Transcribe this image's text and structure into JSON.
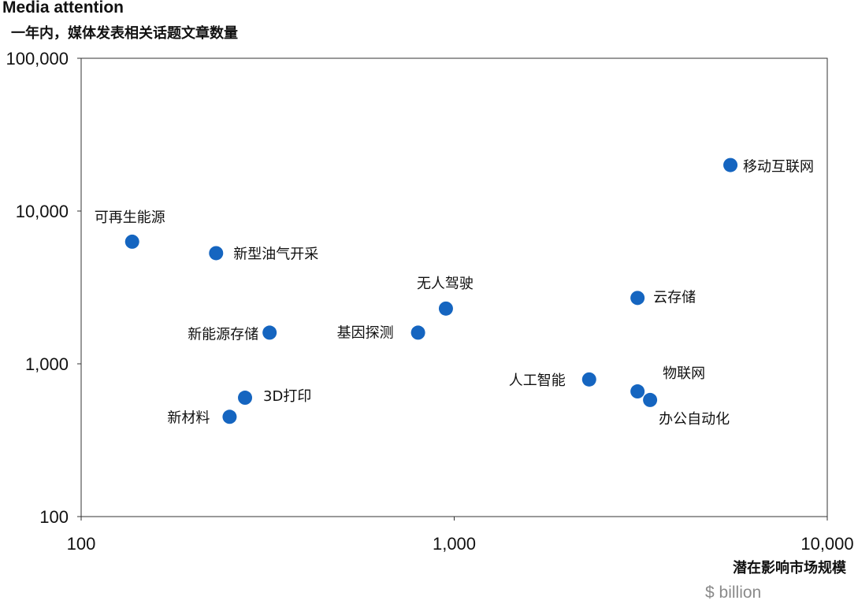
{
  "chart_data": {
    "type": "scatter",
    "title": "Media attention",
    "subtitle": "一年内，媒体发表相关话题文章数量",
    "xlabel": "潜在影响市场规模",
    "xunit": "$ billion",
    "x_scale": "log",
    "y_scale": "log",
    "xlim": [
      100,
      10000
    ],
    "ylim": [
      100,
      100000
    ],
    "x_ticks": [
      "100",
      "1,000",
      "10,000"
    ],
    "y_ticks": [
      "100,000",
      "10,000",
      "1,000",
      "100"
    ],
    "point_color": "#1565c0",
    "grid": false,
    "points": [
      {
        "label": "移动互联网",
        "x": 5500,
        "y": 20000
      },
      {
        "label": "可再生能源",
        "x": 137,
        "y": 6300
      },
      {
        "label": "新型油气开采",
        "x": 230,
        "y": 5300
      },
      {
        "label": "云存储",
        "x": 3100,
        "y": 2700
      },
      {
        "label": "无人驾驶",
        "x": 950,
        "y": 2300
      },
      {
        "label": "新能源存储",
        "x": 320,
        "y": 1600
      },
      {
        "label": "基因探测",
        "x": 800,
        "y": 1600
      },
      {
        "label": "人工智能",
        "x": 2300,
        "y": 790
      },
      {
        "label": "物联网",
        "x": 3100,
        "y": 660
      },
      {
        "label": "办公自动化",
        "x": 3350,
        "y": 580
      },
      {
        "label": "3D打印",
        "x": 275,
        "y": 600
      },
      {
        "label": "新材料",
        "x": 250,
        "y": 450
      }
    ]
  }
}
